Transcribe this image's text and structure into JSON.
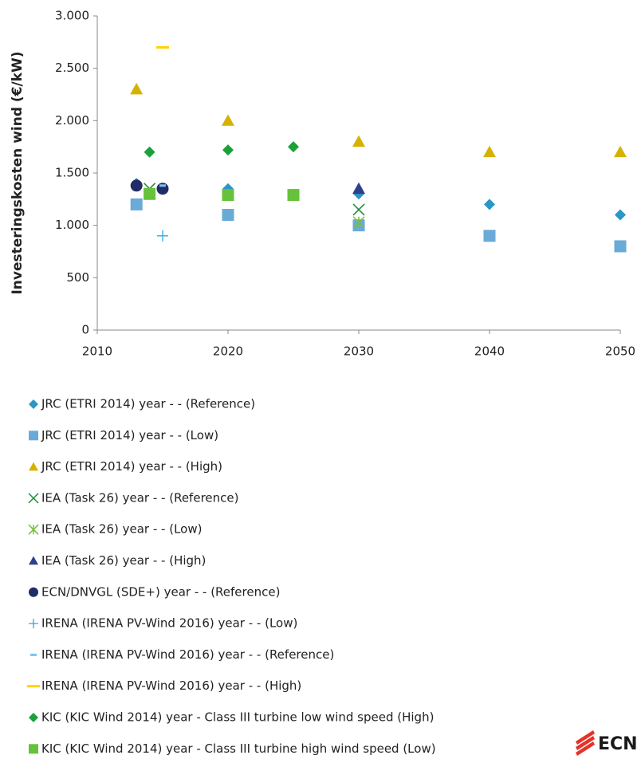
{
  "chart_data": {
    "type": "scatter",
    "y_label": "Investeringskosten wind (€/kW)",
    "xlim": [
      2010,
      2050
    ],
    "xticks": [
      2010,
      2020,
      2030,
      2040,
      2050
    ],
    "ylim": [
      0,
      3000
    ],
    "yticks": [
      0,
      500,
      {
        "value": 1000,
        "label": "1.000"
      },
      {
        "value": 1500,
        "label": "1.500"
      },
      {
        "value": 2000,
        "label": "2.000"
      },
      {
        "value": 2500,
        "label": "2.500"
      },
      {
        "value": 3000,
        "label": "3.000"
      }
    ],
    "logo": "ECN",
    "series": [
      {
        "name": "JRC (ETRI 2014) year - - (Reference)",
        "color": "#2b96c8",
        "marker": "diamond",
        "x": [
          2013,
          2020,
          2030,
          2040,
          2050
        ],
        "values": [
          1400,
          1350,
          1300,
          1200,
          1100
        ]
      },
      {
        "name": "JRC (ETRI 2014) year - - (Low)",
        "color": "#6aaad6",
        "marker": "square",
        "x": [
          2013,
          2020,
          2030,
          2040,
          2050
        ],
        "values": [
          1200,
          1100,
          1000,
          900,
          800
        ]
      },
      {
        "name": "JRC (ETRI 2014) year - - (High)",
        "color": "#d6b200",
        "marker": "triangle",
        "x": [
          2013,
          2020,
          2030,
          2040,
          2050
        ],
        "values": [
          2300,
          2000,
          1800,
          1700,
          1700
        ]
      },
      {
        "name": "IEA (Task 26) year - - (Reference)",
        "color": "#1d8a3a",
        "marker": "x",
        "x": [
          2014,
          2030
        ],
        "values": [
          1350,
          1150
        ]
      },
      {
        "name": "IEA (Task 26) year - - (Low)",
        "color": "#78bf3c",
        "marker": "asterisk",
        "x": [
          2030
        ],
        "values": [
          1030
        ]
      },
      {
        "name": "IEA (Task 26) year - - (High)",
        "color": "#2f3f8c",
        "marker": "triangle",
        "x": [
          2030
        ],
        "values": [
          1350
        ]
      },
      {
        "name": "ECN/DNVGL (SDE+) year - - (Reference)",
        "color": "#1f2c66",
        "marker": "circle",
        "x": [
          2013,
          2015
        ],
        "values": [
          1380,
          1350
        ]
      },
      {
        "name": "IRENA (IRENA PV-Wind 2016) year - - (Low)",
        "color": "#2ea8e0",
        "marker": "plus",
        "x": [
          2015
        ],
        "values": [
          900
        ]
      },
      {
        "name": "IRENA (IRENA PV-Wind 2016) year - - (Reference)",
        "color": "#7cc4ec",
        "marker": "dash-small",
        "x": [
          2015
        ],
        "values": [
          1380
        ]
      },
      {
        "name": "IRENA (IRENA PV-Wind 2016) year - - (High)",
        "color": "#ffd200",
        "marker": "dash",
        "x": [
          2015
        ],
        "values": [
          2700
        ]
      },
      {
        "name": "KIC (KIC Wind 2014) year - Class III turbine low wind speed (High)",
        "color": "#1ba13a",
        "marker": "diamond",
        "x": [
          2014,
          2020,
          2025
        ],
        "values": [
          1700,
          1720,
          1750
        ]
      },
      {
        "name": "KIC (KIC Wind 2014) year - Class III turbine high wind speed (Low)",
        "color": "#66c23a",
        "marker": "square",
        "x": [
          2014,
          2020,
          2025
        ],
        "values": [
          1300,
          1290,
          1290
        ]
      }
    ]
  }
}
